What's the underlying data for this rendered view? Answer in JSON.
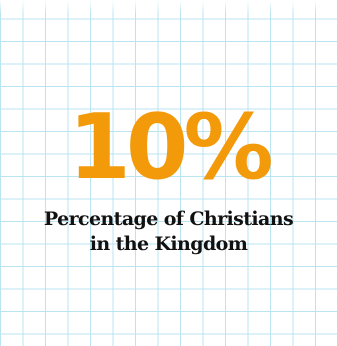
{
  "stat": {
    "value": "10%",
    "color": "#f39a0b"
  },
  "caption": {
    "line1": "Percentage of Christians",
    "line2": "in the Kingdom"
  },
  "background": {
    "grid_color": "#b9e4f0"
  }
}
